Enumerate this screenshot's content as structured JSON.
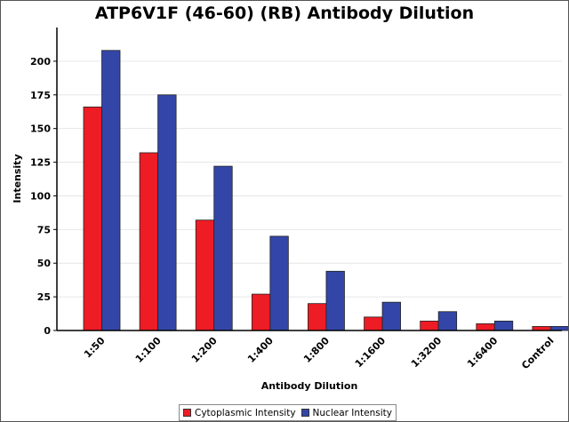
{
  "chart_data": {
    "type": "bar",
    "title": "ATP6V1F (46-60) (RB) Antibody Dilution",
    "xlabel": "Antibody Dilution",
    "ylabel": "Intensity",
    "categories": [
      "1:50",
      "1:100",
      "1:200",
      "1:400",
      "1:800",
      "1:1600",
      "1:3200",
      "1:6400",
      "Control"
    ],
    "series": [
      {
        "name": "Cytoplasmic Intensity",
        "color": "#ee1c24",
        "values": [
          166,
          132,
          82,
          27,
          20,
          10,
          7,
          5,
          3
        ]
      },
      {
        "name": "Nuclear Intensity",
        "color": "#3346a8",
        "values": [
          208,
          175,
          122,
          70,
          44,
          21,
          14,
          7,
          3
        ]
      }
    ],
    "ylim": [
      0,
      225
    ],
    "yticks": [
      "0",
      "25",
      "50",
      "75",
      "100",
      "125",
      "150",
      "175",
      "200"
    ],
    "grid": true,
    "legend_position": "bottom"
  }
}
